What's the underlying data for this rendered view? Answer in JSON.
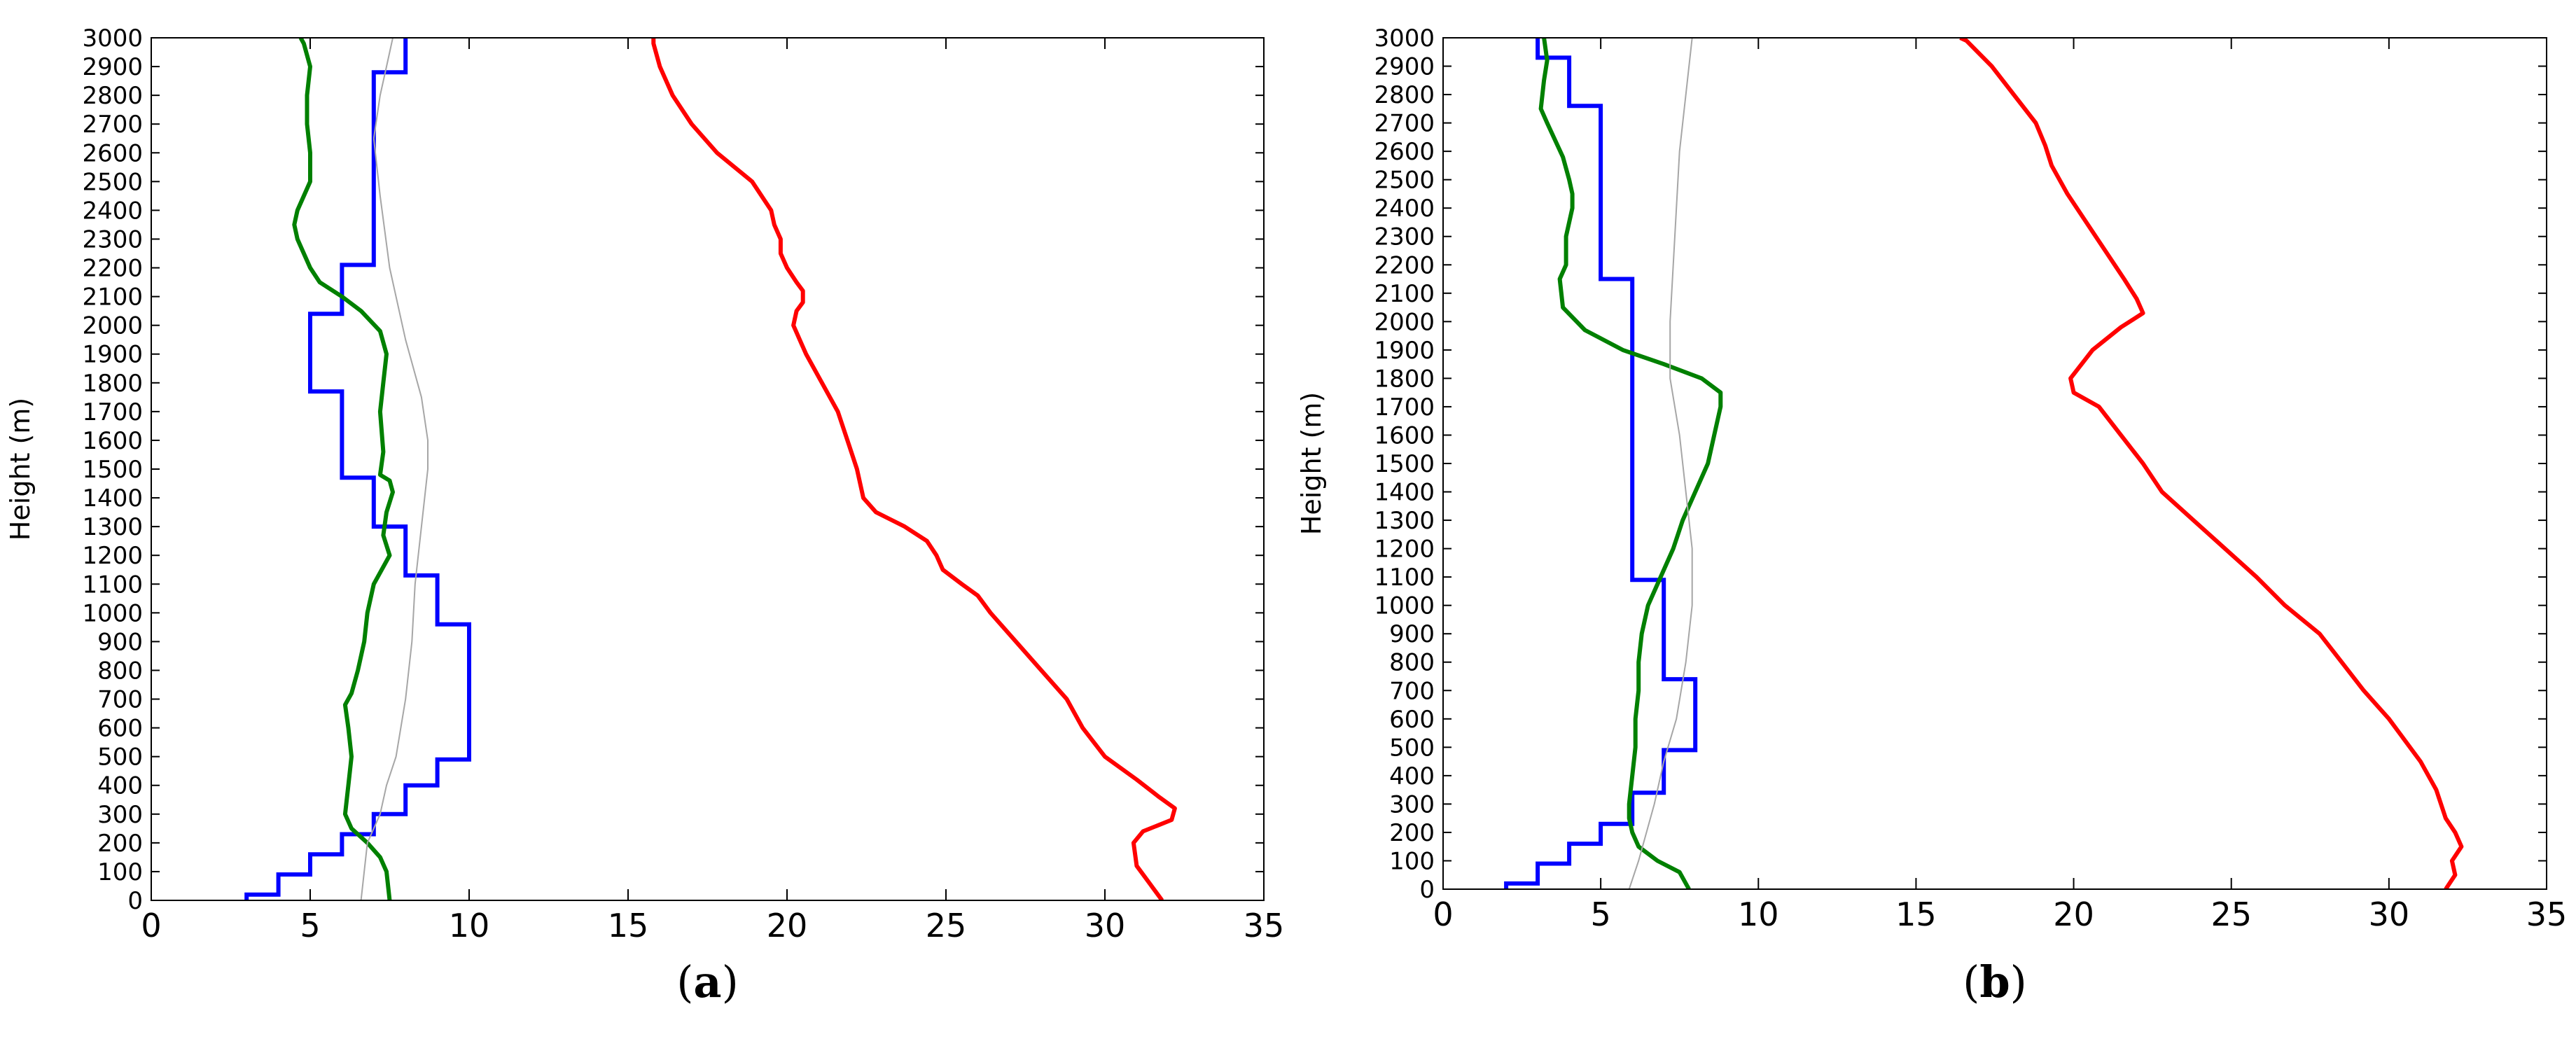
{
  "figure": {
    "panels": [
      "a",
      "b"
    ]
  },
  "chart_data": [
    {
      "type": "line",
      "panel_label": "a",
      "ylabel": "Height (m)",
      "xlabel": "",
      "title": "",
      "xlim": [
        0,
        35
      ],
      "ylim": [
        0,
        3000
      ],
      "xticks": [
        "0",
        "5",
        "10",
        "15",
        "20",
        "25",
        "30",
        "35"
      ],
      "yticks": [
        "0",
        "100",
        "200",
        "300",
        "400",
        "500",
        "600",
        "700",
        "800",
        "900",
        "1000",
        "1100",
        "1200",
        "1300",
        "1400",
        "1500",
        "1600",
        "1700",
        "1800",
        "1900",
        "2000",
        "2100",
        "2200",
        "2300",
        "2400",
        "2500",
        "2600",
        "2700",
        "2800",
        "2900",
        "3000"
      ],
      "grid": false,
      "legend": "none",
      "series": [
        {
          "color": "#ff0000",
          "stroke": 6,
          "step": false,
          "points": [
            [
              31.8,
              0
            ],
            [
              31.4,
              60
            ],
            [
              31.0,
              120
            ],
            [
              30.9,
              200
            ],
            [
              31.2,
              240
            ],
            [
              32.1,
              280
            ],
            [
              32.2,
              320
            ],
            [
              31.7,
              360
            ],
            [
              31.0,
              420
            ],
            [
              30.0,
              500
            ],
            [
              29.3,
              600
            ],
            [
              28.8,
              700
            ],
            [
              28.0,
              800
            ],
            [
              27.2,
              900
            ],
            [
              26.4,
              1000
            ],
            [
              26.0,
              1060
            ],
            [
              25.5,
              1100
            ],
            [
              24.9,
              1150
            ],
            [
              24.7,
              1200
            ],
            [
              24.4,
              1250
            ],
            [
              23.7,
              1300
            ],
            [
              22.8,
              1350
            ],
            [
              22.4,
              1400
            ],
            [
              22.2,
              1500
            ],
            [
              21.9,
              1600
            ],
            [
              21.6,
              1700
            ],
            [
              21.1,
              1800
            ],
            [
              20.6,
              1900
            ],
            [
              20.2,
              2000
            ],
            [
              20.3,
              2050
            ],
            [
              20.5,
              2080
            ],
            [
              20.5,
              2120
            ],
            [
              20.3,
              2150
            ],
            [
              20.0,
              2200
            ],
            [
              19.8,
              2250
            ],
            [
              19.8,
              2300
            ],
            [
              19.6,
              2350
            ],
            [
              19.5,
              2400
            ],
            [
              18.9,
              2500
            ],
            [
              17.8,
              2600
            ],
            [
              17.0,
              2700
            ],
            [
              16.4,
              2800
            ],
            [
              16.0,
              2900
            ],
            [
              15.8,
              2980
            ],
            [
              15.8,
              3000
            ]
          ]
        },
        {
          "color": "#0000ff",
          "stroke": 6,
          "step": true,
          "points": [
            [
              3,
              0
            ],
            [
              3,
              20
            ],
            [
              4,
              20
            ],
            [
              4,
              90
            ],
            [
              5,
              90
            ],
            [
              5,
              160
            ],
            [
              6,
              160
            ],
            [
              6,
              230
            ],
            [
              7,
              230
            ],
            [
              7,
              300
            ],
            [
              8,
              300
            ],
            [
              8,
              400
            ],
            [
              9,
              400
            ],
            [
              9,
              490
            ],
            [
              10,
              490
            ],
            [
              10,
              960
            ],
            [
              9,
              960
            ],
            [
              9,
              1130
            ],
            [
              8,
              1130
            ],
            [
              8,
              1300
            ],
            [
              7,
              1300
            ],
            [
              7,
              1470
            ],
            [
              6,
              1470
            ],
            [
              6,
              1770
            ],
            [
              5,
              1770
            ],
            [
              5,
              2040
            ],
            [
              6,
              2040
            ],
            [
              6,
              2210
            ],
            [
              7,
              2210
            ],
            [
              7,
              2880
            ],
            [
              8,
              2880
            ],
            [
              8,
              3000
            ]
          ]
        },
        {
          "color": "#008000",
          "stroke": 6,
          "step": false,
          "points": [
            [
              7.5,
              0
            ],
            [
              7.4,
              100
            ],
            [
              7.2,
              150
            ],
            [
              6.8,
              200
            ],
            [
              6.3,
              250
            ],
            [
              6.1,
              300
            ],
            [
              6.2,
              400
            ],
            [
              6.3,
              500
            ],
            [
              6.2,
              600
            ],
            [
              6.1,
              680
            ],
            [
              6.3,
              720
            ],
            [
              6.5,
              800
            ],
            [
              6.7,
              900
            ],
            [
              6.8,
              1000
            ],
            [
              7.0,
              1100
            ],
            [
              7.5,
              1200
            ],
            [
              7.3,
              1270
            ],
            [
              7.4,
              1350
            ],
            [
              7.6,
              1420
            ],
            [
              7.5,
              1460
            ],
            [
              7.2,
              1480
            ],
            [
              7.3,
              1560
            ],
            [
              7.2,
              1700
            ],
            [
              7.3,
              1800
            ],
            [
              7.4,
              1900
            ],
            [
              7.2,
              1980
            ],
            [
              6.6,
              2050
            ],
            [
              6.0,
              2100
            ],
            [
              5.3,
              2150
            ],
            [
              5.0,
              2200
            ],
            [
              4.8,
              2250
            ],
            [
              4.6,
              2300
            ],
            [
              4.5,
              2350
            ],
            [
              4.6,
              2400
            ],
            [
              4.8,
              2450
            ],
            [
              5.0,
              2500
            ],
            [
              5.0,
              2600
            ],
            [
              4.9,
              2700
            ],
            [
              4.9,
              2800
            ],
            [
              5.0,
              2900
            ],
            [
              4.8,
              2980
            ],
            [
              4.7,
              3000
            ]
          ]
        },
        {
          "color": "#a6a6a6",
          "stroke": 2,
          "step": false,
          "points": [
            [
              6.6,
              0
            ],
            [
              6.8,
              200
            ],
            [
              7.2,
              300
            ],
            [
              7.4,
              400
            ],
            [
              7.7,
              500
            ],
            [
              8.0,
              700
            ],
            [
              8.2,
              900
            ],
            [
              8.3,
              1100
            ],
            [
              8.5,
              1300
            ],
            [
              8.7,
              1500
            ],
            [
              8.7,
              1600
            ],
            [
              8.5,
              1750
            ],
            [
              8.0,
              1950
            ],
            [
              7.5,
              2200
            ],
            [
              7.2,
              2450
            ],
            [
              7.0,
              2650
            ],
            [
              7.2,
              2800
            ],
            [
              7.4,
              2900
            ],
            [
              7.6,
              3000
            ]
          ]
        }
      ]
    },
    {
      "type": "line",
      "panel_label": "b",
      "ylabel": "Height (m)",
      "xlabel": "",
      "title": "",
      "xlim": [
        0,
        35
      ],
      "ylim": [
        0,
        3000
      ],
      "xticks": [
        "0",
        "5",
        "10",
        "15",
        "20",
        "25",
        "30",
        "35"
      ],
      "yticks": [
        "0",
        "100",
        "200",
        "300",
        "400",
        "500",
        "600",
        "700",
        "800",
        "900",
        "1000",
        "1100",
        "1200",
        "1300",
        "1400",
        "1500",
        "1600",
        "1700",
        "1800",
        "1900",
        "2000",
        "2100",
        "2200",
        "2300",
        "2400",
        "2500",
        "2600",
        "2700",
        "2800",
        "2900",
        "3000"
      ],
      "grid": false,
      "legend": "none",
      "series": [
        {
          "color": "#ff0000",
          "stroke": 6,
          "step": false,
          "points": [
            [
              31.8,
              0
            ],
            [
              32.1,
              50
            ],
            [
              32.0,
              100
            ],
            [
              32.3,
              150
            ],
            [
              32.1,
              200
            ],
            [
              31.8,
              250
            ],
            [
              31.5,
              350
            ],
            [
              31.0,
              450
            ],
            [
              30.0,
              600
            ],
            [
              29.2,
              700
            ],
            [
              28.5,
              800
            ],
            [
              27.8,
              900
            ],
            [
              26.7,
              1000
            ],
            [
              25.8,
              1100
            ],
            [
              24.8,
              1200
            ],
            [
              23.8,
              1300
            ],
            [
              22.8,
              1400
            ],
            [
              22.2,
              1500
            ],
            [
              21.5,
              1600
            ],
            [
              20.8,
              1700
            ],
            [
              20.0,
              1750
            ],
            [
              19.9,
              1800
            ],
            [
              20.6,
              1900
            ],
            [
              21.5,
              1980
            ],
            [
              22.2,
              2030
            ],
            [
              22.0,
              2080
            ],
            [
              21.6,
              2150
            ],
            [
              21.0,
              2250
            ],
            [
              20.4,
              2350
            ],
            [
              19.8,
              2450
            ],
            [
              19.3,
              2550
            ],
            [
              19.1,
              2620
            ],
            [
              18.8,
              2700
            ],
            [
              18.1,
              2800
            ],
            [
              17.4,
              2900
            ],
            [
              16.6,
              2990
            ],
            [
              16.4,
              3000
            ]
          ]
        },
        {
          "color": "#0000ff",
          "stroke": 6,
          "step": true,
          "points": [
            [
              2,
              0
            ],
            [
              2,
              20
            ],
            [
              3,
              20
            ],
            [
              3,
              90
            ],
            [
              4,
              90
            ],
            [
              4,
              160
            ],
            [
              5,
              160
            ],
            [
              5,
              230
            ],
            [
              6,
              230
            ],
            [
              6,
              340
            ],
            [
              7,
              340
            ],
            [
              7,
              490
            ],
            [
              8,
              490
            ],
            [
              8,
              740
            ],
            [
              7,
              740
            ],
            [
              7,
              1090
            ],
            [
              6,
              1090
            ],
            [
              6,
              2150
            ],
            [
              5,
              2150
            ],
            [
              5,
              2760
            ],
            [
              4,
              2760
            ],
            [
              4,
              2930
            ],
            [
              3,
              2930
            ],
            [
              3,
              3000
            ]
          ]
        },
        {
          "color": "#008000",
          "stroke": 6,
          "step": false,
          "points": [
            [
              7.8,
              0
            ],
            [
              7.5,
              60
            ],
            [
              6.8,
              100
            ],
            [
              6.2,
              150
            ],
            [
              6.0,
              200
            ],
            [
              5.9,
              250
            ],
            [
              5.9,
              300
            ],
            [
              6.0,
              400
            ],
            [
              6.1,
              500
            ],
            [
              6.1,
              600
            ],
            [
              6.2,
              700
            ],
            [
              6.2,
              800
            ],
            [
              6.3,
              900
            ],
            [
              6.5,
              1000
            ],
            [
              6.9,
              1100
            ],
            [
              7.3,
              1200
            ],
            [
              7.6,
              1300
            ],
            [
              8.0,
              1400
            ],
            [
              8.4,
              1500
            ],
            [
              8.6,
              1600
            ],
            [
              8.8,
              1700
            ],
            [
              8.8,
              1750
            ],
            [
              8.2,
              1800
            ],
            [
              7.0,
              1850
            ],
            [
              5.7,
              1900
            ],
            [
              4.5,
              1970
            ],
            [
              3.8,
              2050
            ],
            [
              3.7,
              2150
            ],
            [
              3.9,
              2200
            ],
            [
              3.9,
              2300
            ],
            [
              4.1,
              2400
            ],
            [
              4.1,
              2450
            ],
            [
              4.0,
              2500
            ],
            [
              3.8,
              2580
            ],
            [
              3.3,
              2700
            ],
            [
              3.1,
              2750
            ],
            [
              3.2,
              2850
            ],
            [
              3.3,
              2920
            ],
            [
              3.2,
              3000
            ]
          ]
        },
        {
          "color": "#a6a6a6",
          "stroke": 2,
          "step": false,
          "points": [
            [
              5.9,
              0
            ],
            [
              6.2,
              100
            ],
            [
              6.7,
              300
            ],
            [
              7.0,
              450
            ],
            [
              7.4,
              600
            ],
            [
              7.7,
              800
            ],
            [
              7.9,
              1000
            ],
            [
              7.9,
              1200
            ],
            [
              7.7,
              1400
            ],
            [
              7.5,
              1600
            ],
            [
              7.2,
              1800
            ],
            [
              7.2,
              2000
            ],
            [
              7.3,
              2200
            ],
            [
              7.4,
              2400
            ],
            [
              7.5,
              2600
            ],
            [
              7.7,
              2800
            ],
            [
              7.9,
              3000
            ]
          ]
        }
      ]
    }
  ]
}
